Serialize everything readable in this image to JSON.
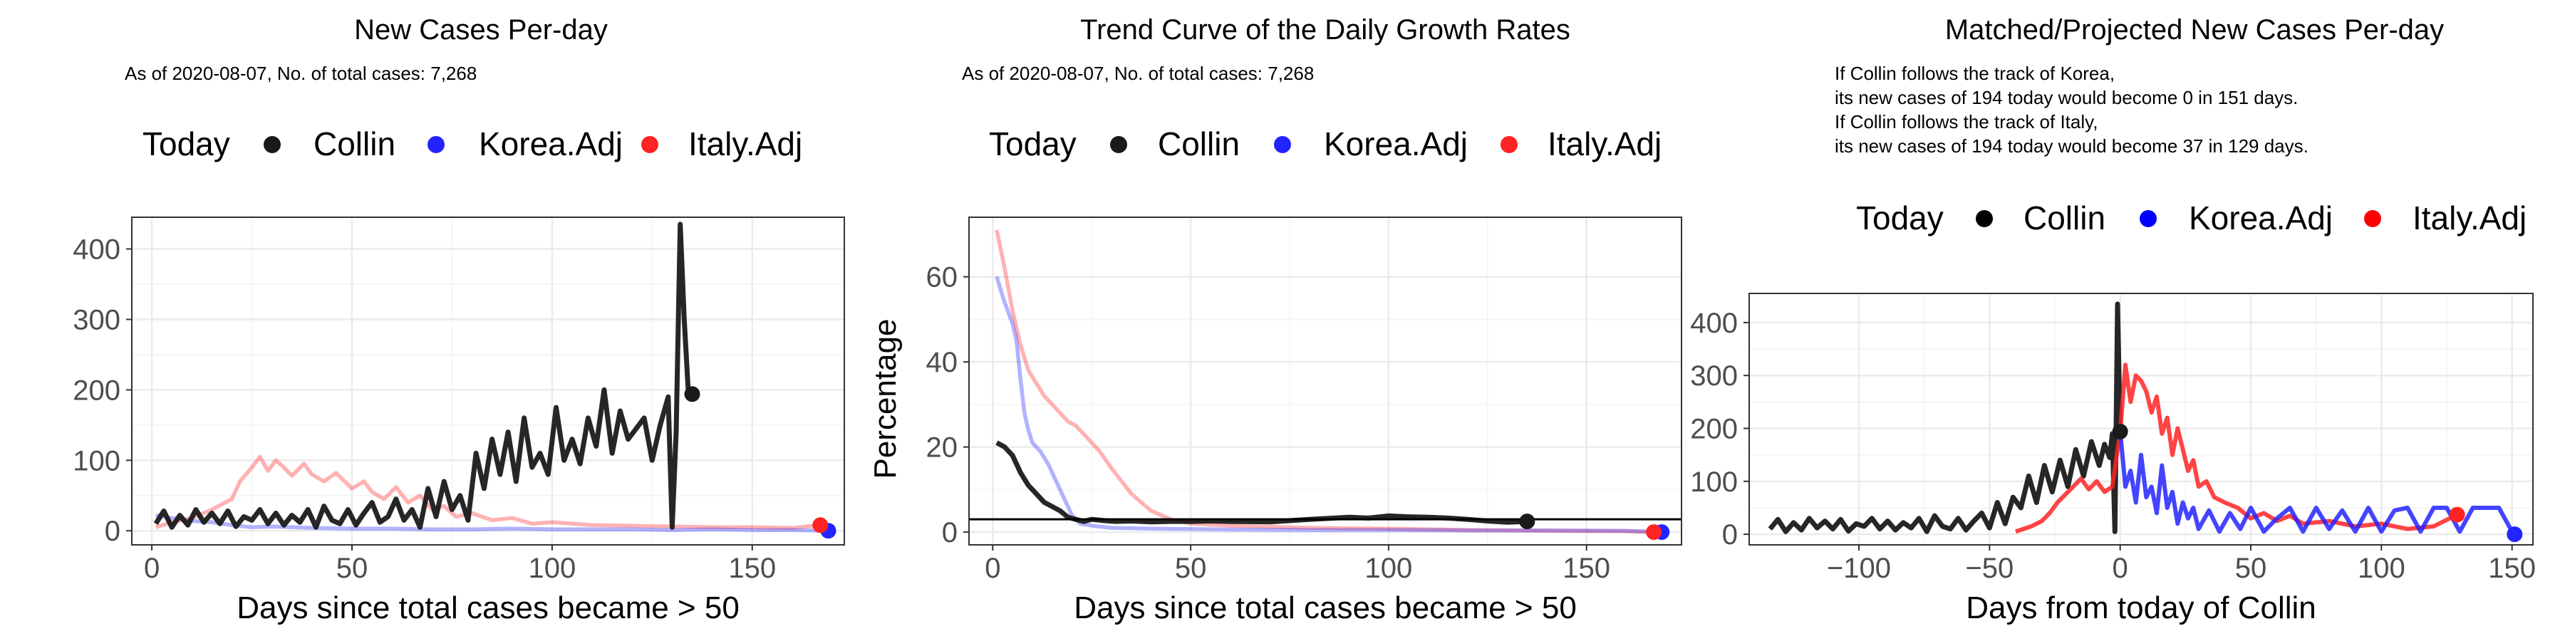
{
  "colors": {
    "collin": "#1a1a1a",
    "korea": "#2323ff",
    "italy": "#ff2323",
    "grid_major": "#ebebeb",
    "grid_minor": "#f5f5f5",
    "panel_border": "#333333"
  },
  "legend": {
    "title": "Today",
    "items": [
      "Collin",
      "Korea.Adj",
      "Italy.Adj"
    ]
  },
  "panels": [
    {
      "title": "New Cases Per-day",
      "subtitle": "As of 2020-08-07, No. of total cases: 7,268",
      "xlabel": "Days since total cases became > 50",
      "ylabel": ""
    },
    {
      "title": "Trend Curve of the Daily Growth Rates",
      "subtitle": "As of 2020-08-07, No. of total cases: 7,268",
      "xlabel": "Days since total cases became > 50",
      "ylabel": "Percentage"
    },
    {
      "title": "Matched/Projected New Cases Per-day",
      "subtitle_lines": [
        "If Collin follows the track of Korea,",
        "its new cases of 194 today would become 0 in 151 days.",
        "If Collin follows the track of Italy,",
        "its new cases of 194 today would become 37 in 129 days."
      ],
      "xlabel": "Days from today of Collin",
      "ylabel": ""
    }
  ],
  "chart_data": [
    {
      "type": "line",
      "title": "New Cases Per-day",
      "xlabel": "Days since total cases became > 50",
      "ylabel": "",
      "xlim": [
        -5,
        173
      ],
      "ylim": [
        -20,
        445
      ],
      "xticks": [
        0,
        50,
        100,
        150
      ],
      "yticks": [
        0,
        100,
        200,
        300,
        400
      ],
      "grid": true,
      "legend_position": "top",
      "series": [
        {
          "name": "Collin",
          "x": [
            1,
            3,
            5,
            7,
            9,
            11,
            13,
            15,
            17,
            19,
            21,
            23,
            25,
            27,
            29,
            31,
            33,
            35,
            37,
            39,
            41,
            43,
            45,
            47,
            49,
            51,
            53,
            55,
            57,
            59,
            61,
            63,
            65,
            67,
            69,
            71,
            73,
            75,
            77,
            79,
            81,
            83,
            85,
            87,
            89,
            91,
            93,
            95,
            97,
            99,
            101,
            103,
            105,
            107,
            109,
            111,
            113,
            115,
            117,
            119,
            121,
            123,
            125,
            127,
            129,
            130,
            131,
            132,
            133,
            134,
            135
          ],
          "y": [
            10,
            28,
            5,
            22,
            8,
            30,
            12,
            25,
            10,
            28,
            6,
            20,
            15,
            30,
            10,
            25,
            8,
            22,
            12,
            30,
            5,
            35,
            15,
            10,
            30,
            8,
            25,
            40,
            12,
            20,
            45,
            15,
            30,
            5,
            60,
            20,
            70,
            30,
            50,
            15,
            110,
            60,
            130,
            80,
            140,
            70,
            160,
            90,
            110,
            80,
            175,
            100,
            130,
            95,
            160,
            120,
            200,
            110,
            170,
            130,
            145,
            160,
            100,
            150,
            190,
            5,
            140,
            435,
            300,
            200,
            194
          ],
          "today": [
            135,
            194
          ]
        },
        {
          "name": "Korea.Adj",
          "x": [
            1,
            5,
            10,
            15,
            20,
            25,
            30,
            40,
            50,
            60,
            70,
            80,
            90,
            100,
            110,
            120,
            130,
            140,
            150,
            160,
            169
          ],
          "y": [
            22,
            18,
            14,
            12,
            8,
            5,
            6,
            4,
            3,
            3,
            2,
            2,
            3,
            2,
            2,
            2,
            1,
            2,
            1,
            1,
            0
          ],
          "today": [
            169,
            0
          ]
        },
        {
          "name": "Italy.Adj",
          "x": [
            1,
            5,
            10,
            15,
            20,
            22,
            25,
            27,
            29,
            31,
            33,
            35,
            38,
            40,
            43,
            46,
            50,
            53,
            55,
            58,
            61,
            64,
            67,
            70,
            73,
            76,
            80,
            85,
            90,
            95,
            100,
            110,
            120,
            130,
            140,
            150,
            160,
            167
          ],
          "y": [
            5,
            12,
            18,
            30,
            45,
            70,
            90,
            105,
            85,
            100,
            90,
            78,
            95,
            80,
            70,
            82,
            60,
            70,
            55,
            45,
            62,
            40,
            50,
            30,
            35,
            20,
            25,
            15,
            18,
            10,
            12,
            8,
            7,
            6,
            5,
            5,
            4,
            8
          ],
          "today": [
            167,
            8
          ]
        }
      ]
    },
    {
      "type": "line",
      "title": "Trend Curve of the Daily Growth Rates",
      "xlabel": "Days since total cases became > 50",
      "ylabel": "Percentage",
      "xlim": [
        -6,
        174
      ],
      "ylim": [
        -3,
        74
      ],
      "xticks": [
        0,
        50,
        100,
        150
      ],
      "yticks": [
        0,
        20,
        40,
        60
      ],
      "hline": 3,
      "grid": true,
      "legend_position": "top",
      "series": [
        {
          "name": "Collin",
          "x": [
            1,
            3,
            5,
            7,
            9,
            11,
            13,
            15,
            17,
            19,
            21,
            23,
            25,
            28,
            31,
            35,
            40,
            45,
            50,
            55,
            60,
            70,
            80,
            90,
            95,
            100,
            105,
            110,
            115,
            120,
            125,
            130,
            135
          ],
          "y": [
            21,
            20,
            18,
            14,
            11,
            9,
            7,
            6,
            5,
            3.5,
            3,
            2.5,
            3,
            2.7,
            2.5,
            2.6,
            2.4,
            2.5,
            2.5,
            2.6,
            2.5,
            2.4,
            3,
            3.5,
            3.3,
            3.8,
            3.6,
            3.5,
            3.3,
            3,
            2.6,
            2.3,
            2.5
          ],
          "today": [
            135,
            2.5
          ]
        },
        {
          "name": "Korea.Adj",
          "x": [
            1,
            3,
            5,
            6,
            7,
            8,
            9,
            10,
            12,
            14,
            16,
            18,
            20,
            22,
            25,
            30,
            40,
            60,
            80,
            100,
            120,
            140,
            160,
            169
          ],
          "y": [
            60,
            54,
            49,
            45,
            36,
            28,
            24,
            21,
            19,
            16,
            12,
            8,
            4,
            2,
            1.5,
            1,
            0.8,
            0.6,
            0.5,
            0.5,
            0.4,
            0.4,
            0.3,
            0
          ],
          "today": [
            169,
            0
          ]
        },
        {
          "name": "Italy.Adj",
          "x": [
            1,
            3,
            5,
            7,
            9,
            11,
            13,
            15,
            17,
            19,
            21,
            24,
            27,
            30,
            35,
            40,
            45,
            50,
            60,
            80,
            100,
            120,
            140,
            160,
            167
          ],
          "y": [
            71,
            62,
            52,
            44,
            38,
            35,
            32,
            30,
            28,
            26,
            25,
            22,
            19,
            15,
            9,
            5,
            3,
            2,
            1.5,
            1,
            0.8,
            0.5,
            0.3,
            0.2,
            0
          ],
          "today": [
            167,
            0
          ]
        }
      ]
    },
    {
      "type": "line",
      "title": "Matched/Projected New Cases Per-day",
      "xlabel": "Days from today of Collin",
      "ylabel": "",
      "xlim": [
        -142,
        158
      ],
      "ylim": [
        -20,
        455
      ],
      "xticks": [
        -100,
        -50,
        0,
        50,
        100,
        150
      ],
      "yticks": [
        0,
        100,
        200,
        300,
        400
      ],
      "grid": true,
      "legend_position": "top",
      "series": [
        {
          "name": "Collin",
          "x": [
            -134,
            -131,
            -128,
            -125,
            -122,
            -119,
            -116,
            -113,
            -110,
            -107,
            -104,
            -101,
            -98,
            -95,
            -92,
            -89,
            -86,
            -83,
            -80,
            -77,
            -74,
            -71,
            -68,
            -65,
            -62,
            -59,
            -56,
            -53,
            -50,
            -47,
            -44,
            -41,
            -38,
            -35,
            -32,
            -29,
            -26,
            -23,
            -20,
            -17,
            -14,
            -11,
            -8,
            -6,
            -4,
            -3,
            -2,
            -1,
            0
          ],
          "y": [
            10,
            28,
            5,
            22,
            8,
            30,
            12,
            25,
            10,
            28,
            6,
            20,
            15,
            30,
            10,
            25,
            8,
            22,
            12,
            30,
            5,
            35,
            15,
            10,
            30,
            8,
            25,
            40,
            12,
            60,
            20,
            70,
            50,
            110,
            60,
            130,
            80,
            140,
            90,
            160,
            110,
            175,
            130,
            170,
            145,
            190,
            5,
            435,
            194
          ],
          "today": [
            0,
            194
          ]
        },
        {
          "name": "Korea.Adj",
          "x": [
            0,
            2,
            4,
            6,
            8,
            10,
            12,
            14,
            16,
            18,
            20,
            22,
            24,
            26,
            28,
            30,
            34,
            38,
            42,
            46,
            50,
            55,
            60,
            65,
            70,
            75,
            80,
            85,
            90,
            95,
            100,
            105,
            110,
            115,
            120,
            125,
            130,
            135,
            140,
            145,
            150,
            151
          ],
          "y": [
            194,
            90,
            120,
            60,
            150,
            70,
            90,
            40,
            130,
            50,
            80,
            20,
            60,
            30,
            50,
            10,
            45,
            5,
            40,
            10,
            50,
            5,
            30,
            50,
            5,
            50,
            10,
            45,
            5,
            50,
            5,
            45,
            50,
            5,
            50,
            50,
            5,
            50,
            50,
            50,
            5,
            0
          ],
          "today": [
            151,
            0
          ]
        },
        {
          "name": "Italy.Adj",
          "x": [
            -40,
            -34,
            -30,
            -27,
            -24,
            -21,
            -18,
            -15,
            -12,
            -9,
            -6,
            -3,
            0,
            2,
            4,
            6,
            8,
            10,
            12,
            14,
            16,
            18,
            20,
            22,
            24,
            26,
            28,
            30,
            33,
            36,
            40,
            45,
            50,
            55,
            60,
            65,
            70,
            80,
            90,
            100,
            110,
            120,
            129
          ],
          "y": [
            5,
            15,
            25,
            40,
            60,
            75,
            90,
            105,
            85,
            100,
            80,
            90,
            194,
            320,
            250,
            300,
            290,
            270,
            230,
            260,
            190,
            220,
            150,
            200,
            160,
            120,
            140,
            90,
            100,
            70,
            60,
            50,
            30,
            40,
            25,
            35,
            20,
            25,
            15,
            20,
            10,
            15,
            37
          ],
          "today": [
            129,
            37
          ]
        }
      ]
    }
  ]
}
